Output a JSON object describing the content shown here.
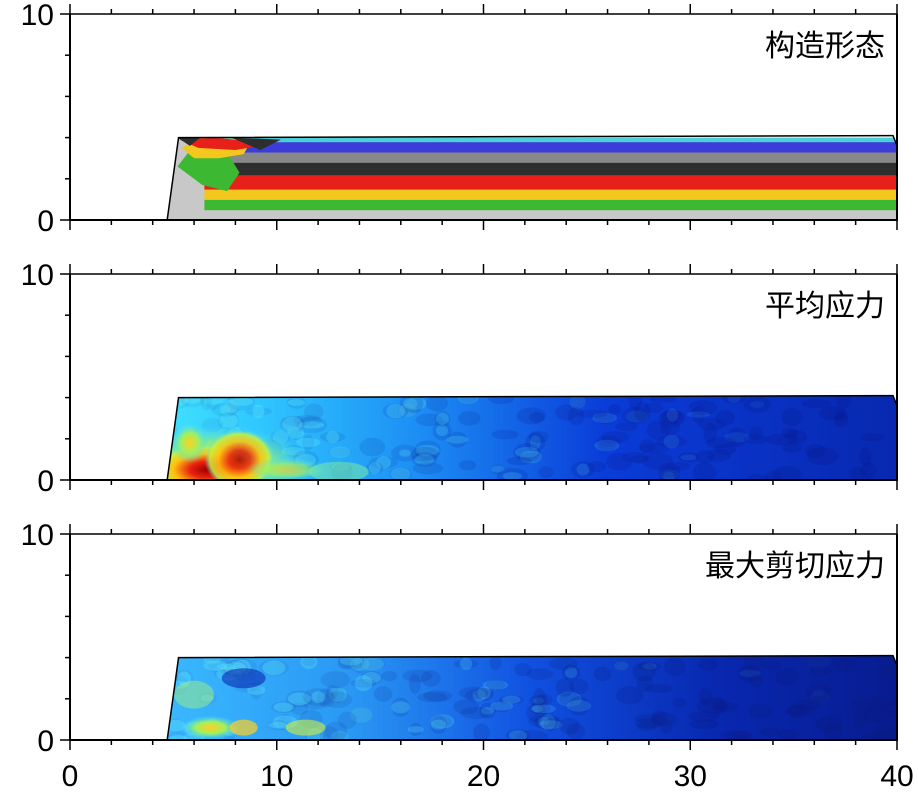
{
  "chart_data": [
    {
      "type": "heatmap",
      "title": "构造形态",
      "xlim": [
        0,
        40
      ],
      "ylim": [
        0,
        10
      ],
      "y_ticks": [
        "0",
        "10"
      ],
      "x_ticks": [],
      "grid": false,
      "body_x_extent": [
        4.7,
        40
      ],
      "body_top": 4,
      "layer_colors": [
        "#c8c8c8",
        "#3cb832",
        "#f2c81e",
        "#e8201a",
        "#2e2e2e",
        "#888888",
        "#3c3cd8",
        "#4ad0d8"
      ],
      "layer_bounds_right": [
        0,
        0.5,
        1.0,
        1.5,
        2.2,
        2.8,
        3.3,
        3.8,
        4.0
      ]
    },
    {
      "type": "heatmap",
      "title": "平均应力",
      "xlim": [
        0,
        40
      ],
      "ylim": [
        0,
        10
      ],
      "y_ticks": [
        "0",
        "10"
      ],
      "x_ticks": [],
      "grid": false,
      "body_x_extent": [
        4.7,
        40
      ],
      "body_top": 4,
      "colormap": "jet",
      "high_stress_zone_x": [
        5,
        9
      ]
    },
    {
      "type": "heatmap",
      "title": "最大剪切应力",
      "xlim": [
        0,
        40
      ],
      "ylim": [
        0,
        10
      ],
      "y_ticks": [
        "0",
        "10"
      ],
      "x_ticks": [
        "0",
        "10",
        "20",
        "30",
        "40"
      ],
      "grid": false,
      "body_x_extent": [
        4.7,
        40
      ],
      "body_top": 4,
      "colormap": "jet",
      "high_stress_zone_x": [
        5,
        10
      ]
    }
  ]
}
